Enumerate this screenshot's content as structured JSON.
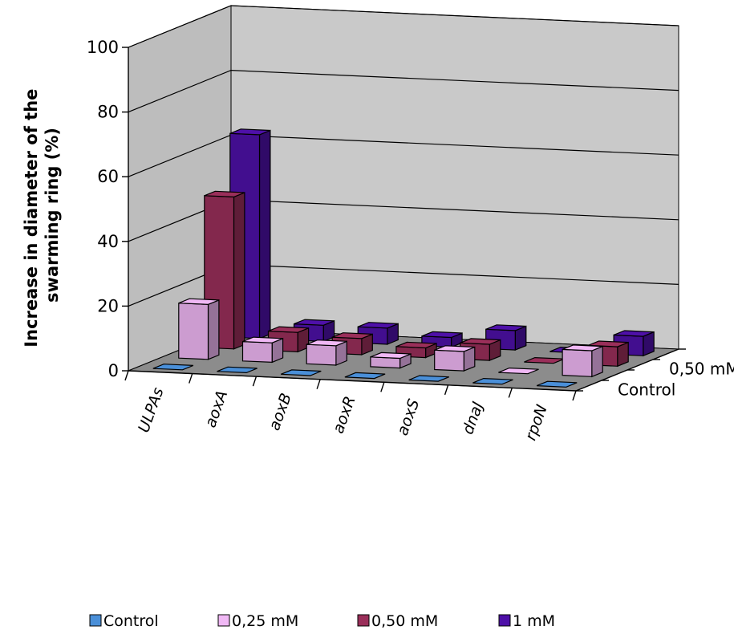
{
  "chart_data": {
    "type": "bar",
    "subtype": "3d-column",
    "title": "",
    "ylabel": [
      "Increase in diameter of the",
      "swarming ring (%)"
    ],
    "xlabel": "",
    "ylim": [
      0,
      100
    ],
    "yticks": [
      0,
      20,
      40,
      60,
      80,
      100
    ],
    "categories": [
      "ULPAs",
      "aoxA",
      "aoxB",
      "aoxR",
      "aoxS",
      "dnaJ",
      "rpoN"
    ],
    "depth_labels": [
      "Control",
      "0,50 mM"
    ],
    "series": [
      {
        "name": "Control",
        "color": "#4a8fd8",
        "values": [
          0,
          0,
          0,
          0,
          0,
          0,
          0
        ]
      },
      {
        "name": "0,25 mM",
        "color": "#f0b8f5",
        "values": [
          17,
          6,
          6,
          3,
          6,
          0,
          8
        ]
      },
      {
        "name": "0,50 mM",
        "color": "#9a2f5a",
        "values": [
          47,
          6,
          5,
          3,
          5,
          0,
          6
        ]
      },
      {
        "name": "1 mM",
        "color": "#4e10a8",
        "values": [
          63,
          5,
          5,
          3,
          6,
          0,
          6
        ]
      }
    ],
    "grid": true,
    "legend_position": "bottom"
  }
}
